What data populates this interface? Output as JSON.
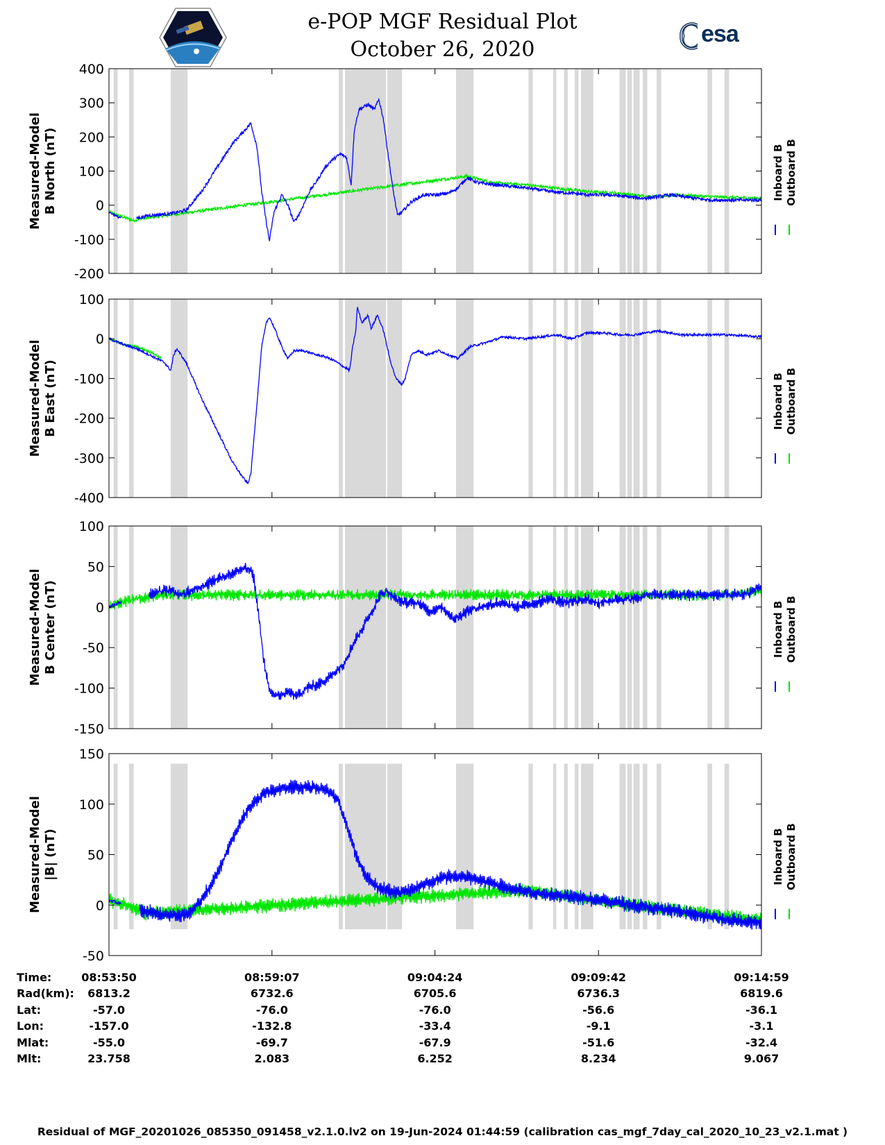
{
  "title": {
    "line1": "e-POP MGF Residual Plot",
    "line2": "October 26, 2020"
  },
  "logos": {
    "left": "cassiope-mission-logo",
    "right_text": "esa"
  },
  "colors": {
    "inboard": "#0000ff",
    "outboard": "#00e600",
    "gap": "#d9d9d9",
    "axis": "#000000"
  },
  "legend": {
    "inboard_label": "Inboard B",
    "outboard_label": "Outboard B"
  },
  "table": {
    "row_labels": [
      "Time:",
      "Rad(km):",
      "Lat:",
      "Lon:",
      "Mlat:",
      "Mlt:"
    ],
    "columns": [
      [
        "08:53:50",
        "6813.2",
        "-57.0",
        "-157.0",
        "-55.0",
        "23.758"
      ],
      [
        "08:59:07",
        "6732.6",
        "-76.0",
        "-132.8",
        "-69.7",
        "2.083"
      ],
      [
        "09:04:24",
        "6705.6",
        "-76.0",
        "-33.4",
        "-67.9",
        "6.252"
      ],
      [
        "09:09:42",
        "6736.3",
        "-56.6",
        "-9.1",
        "-51.6",
        "8.234"
      ],
      [
        "09:14:59",
        "6819.6",
        "-36.1",
        "-3.1",
        "-32.4",
        "9.067"
      ]
    ]
  },
  "footer": "Residual of MGF_20201026_085350_091458_v2.1.0.lv2 on 19-Jun-2024 01:44:59 (calibration cas_mgf_7day_cal_2020_10_23_v2.1.mat )",
  "chart_data": {
    "type": "line",
    "x_unit": "minutes since 08:53:50",
    "x_range": [
      0,
      21.15
    ],
    "x_ticks": [
      0,
      5.283,
      10.567,
      15.867,
      21.15
    ],
    "gaps": [
      [
        0.15,
        0.28
      ],
      [
        0.65,
        0.8
      ],
      [
        2.0,
        2.55
      ],
      [
        7.45,
        7.58
      ],
      [
        7.65,
        8.98
      ],
      [
        9.02,
        9.5
      ],
      [
        11.25,
        11.82
      ],
      [
        13.6,
        13.74
      ],
      [
        14.4,
        14.5
      ],
      [
        14.75,
        14.87
      ],
      [
        15.1,
        15.22
      ],
      [
        15.3,
        15.7
      ],
      [
        16.55,
        16.75
      ],
      [
        16.8,
        16.95
      ],
      [
        17.0,
        17.2
      ],
      [
        17.3,
        17.45
      ],
      [
        17.75,
        17.9
      ],
      [
        19.4,
        19.55
      ],
      [
        19.95,
        20.1
      ]
    ],
    "series": [
      {
        "name": "Measured-Model B North (nT)",
        "ylim": [
          -200,
          400
        ],
        "yticks": [
          -200,
          -100,
          0,
          100,
          200,
          300,
          400
        ],
        "inboard": [
          [
            0,
            -20
          ],
          [
            0.3,
            -35
          ],
          [
            0.8,
            -40
          ],
          [
            1.3,
            -30
          ],
          [
            2.0,
            -25
          ],
          [
            2.5,
            -15
          ],
          [
            3.0,
            40
          ],
          [
            3.5,
            110
          ],
          [
            4.0,
            180
          ],
          [
            4.4,
            220
          ],
          [
            4.6,
            240
          ],
          [
            4.8,
            170
          ],
          [
            4.95,
            40
          ],
          [
            5.1,
            -50
          ],
          [
            5.2,
            -105
          ],
          [
            5.35,
            -20
          ],
          [
            5.6,
            30
          ],
          [
            5.8,
            0
          ],
          [
            6.0,
            -50
          ],
          [
            6.2,
            -20
          ],
          [
            6.5,
            40
          ],
          [
            6.8,
            80
          ],
          [
            7.0,
            110
          ],
          [
            7.2,
            130
          ],
          [
            7.5,
            150
          ],
          [
            7.7,
            140
          ],
          [
            7.85,
            60
          ],
          [
            7.95,
            220
          ],
          [
            8.1,
            280
          ],
          [
            8.4,
            295
          ],
          [
            8.6,
            280
          ],
          [
            8.75,
            310
          ],
          [
            8.9,
            250
          ],
          [
            9.0,
            180
          ],
          [
            9.2,
            50
          ],
          [
            9.35,
            -30
          ],
          [
            9.5,
            -20
          ],
          [
            9.8,
            10
          ],
          [
            10.2,
            30
          ],
          [
            10.6,
            30
          ],
          [
            11.0,
            35
          ],
          [
            11.3,
            50
          ],
          [
            11.5,
            70
          ],
          [
            11.6,
            80
          ],
          [
            12.0,
            65
          ],
          [
            12.5,
            60
          ],
          [
            13.0,
            55
          ],
          [
            13.6,
            50
          ],
          [
            14.3,
            40
          ],
          [
            15.0,
            35
          ],
          [
            15.6,
            30
          ],
          [
            16.2,
            30
          ],
          [
            16.8,
            25
          ],
          [
            17.3,
            20
          ],
          [
            17.8,
            25
          ],
          [
            18.2,
            30
          ],
          [
            19.0,
            20
          ],
          [
            19.5,
            15
          ],
          [
            20.2,
            15
          ],
          [
            21.15,
            15
          ]
        ],
        "outboard": [
          [
            0,
            -20
          ],
          [
            0.3,
            -30
          ],
          [
            0.8,
            -45
          ],
          [
            1.0,
            -40
          ],
          [
            11.6,
            85
          ],
          [
            12.5,
            65
          ],
          [
            13.5,
            60
          ],
          [
            14.5,
            50
          ],
          [
            15.5,
            40
          ],
          [
            16.5,
            35
          ],
          [
            17.5,
            25
          ],
          [
            18.5,
            30
          ],
          [
            19.5,
            25
          ],
          [
            21.15,
            20
          ]
        ]
      },
      {
        "name": "Measured-Model B East (nT)",
        "ylim": [
          -400,
          100
        ],
        "yticks": [
          -400,
          -300,
          -200,
          -100,
          0,
          100
        ],
        "inboard": [
          [
            0,
            0
          ],
          [
            0.5,
            -15
          ],
          [
            0.9,
            -25
          ],
          [
            1.3,
            -40
          ],
          [
            1.8,
            -60
          ],
          [
            2.0,
            -80
          ],
          [
            2.1,
            -40
          ],
          [
            2.2,
            -25
          ],
          [
            2.5,
            -60
          ],
          [
            3.0,
            -150
          ],
          [
            3.5,
            -230
          ],
          [
            4.0,
            -310
          ],
          [
            4.3,
            -345
          ],
          [
            4.5,
            -365
          ],
          [
            4.6,
            -340
          ],
          [
            4.8,
            -160
          ],
          [
            4.95,
            -20
          ],
          [
            5.1,
            40
          ],
          [
            5.2,
            55
          ],
          [
            5.4,
            20
          ],
          [
            5.6,
            -20
          ],
          [
            5.8,
            -50
          ],
          [
            6.0,
            -30
          ],
          [
            6.3,
            -30
          ],
          [
            6.7,
            -40
          ],
          [
            7.0,
            -45
          ],
          [
            7.3,
            -55
          ],
          [
            7.6,
            -70
          ],
          [
            7.8,
            -80
          ],
          [
            7.9,
            -20
          ],
          [
            8.0,
            20
          ],
          [
            8.05,
            80
          ],
          [
            8.2,
            40
          ],
          [
            8.4,
            60
          ],
          [
            8.5,
            25
          ],
          [
            8.7,
            60
          ],
          [
            8.9,
            20
          ],
          [
            9.1,
            -50
          ],
          [
            9.3,
            -100
          ],
          [
            9.5,
            -115
          ],
          [
            9.6,
            -100
          ],
          [
            9.8,
            -40
          ],
          [
            10.0,
            -30
          ],
          [
            10.3,
            -40
          ],
          [
            10.7,
            -30
          ],
          [
            11.0,
            -40
          ],
          [
            11.3,
            -50
          ],
          [
            11.7,
            -20
          ],
          [
            12.2,
            -10
          ],
          [
            12.8,
            5
          ],
          [
            13.5,
            0
          ],
          [
            14.0,
            5
          ],
          [
            14.5,
            10
          ],
          [
            15.0,
            0
          ],
          [
            15.5,
            15
          ],
          [
            16.0,
            15
          ],
          [
            16.6,
            10
          ],
          [
            17.0,
            10
          ],
          [
            17.8,
            20
          ],
          [
            18.2,
            15
          ],
          [
            18.5,
            10
          ],
          [
            19.0,
            10
          ],
          [
            20.0,
            10
          ],
          [
            21.15,
            5
          ]
        ],
        "outboard": [
          [
            0,
            0
          ],
          [
            0.5,
            -15
          ],
          [
            0.9,
            -20
          ],
          [
            1.4,
            -35
          ],
          [
            1.7,
            -50
          ]
        ]
      },
      {
        "name": "Measured-Model B Center (nT)",
        "ylim": [
          -150,
          100
        ],
        "yticks": [
          -150,
          -100,
          -50,
          0,
          50,
          100
        ],
        "inboard": [
          [
            0,
            0
          ],
          [
            0.3,
            5
          ],
          [
            0.8,
            10
          ],
          [
            1.2,
            15
          ],
          [
            1.8,
            20
          ],
          [
            2.0,
            20
          ],
          [
            2.3,
            15
          ],
          [
            2.7,
            20
          ],
          [
            3.0,
            25
          ],
          [
            3.5,
            35
          ],
          [
            4.0,
            42
          ],
          [
            4.4,
            48
          ],
          [
            4.6,
            45
          ],
          [
            4.7,
            35
          ],
          [
            4.85,
            -10
          ],
          [
            5.0,
            -60
          ],
          [
            5.2,
            -105
          ],
          [
            5.5,
            -110
          ],
          [
            5.8,
            -105
          ],
          [
            6.1,
            -110
          ],
          [
            6.4,
            -100
          ],
          [
            6.8,
            -95
          ],
          [
            7.2,
            -85
          ],
          [
            7.6,
            -70
          ],
          [
            7.8,
            -55
          ],
          [
            8.0,
            -40
          ],
          [
            8.3,
            -20
          ],
          [
            8.6,
            0
          ],
          [
            8.8,
            15
          ],
          [
            9.0,
            20
          ],
          [
            9.3,
            10
          ],
          [
            9.6,
            5
          ],
          [
            10.0,
            5
          ],
          [
            10.4,
            -5
          ],
          [
            10.8,
            0
          ],
          [
            11.2,
            -15
          ],
          [
            11.6,
            -5
          ],
          [
            12.0,
            0
          ],
          [
            12.6,
            5
          ],
          [
            13.2,
            0
          ],
          [
            13.8,
            5
          ],
          [
            14.3,
            10
          ],
          [
            14.8,
            5
          ],
          [
            15.4,
            10
          ],
          [
            15.9,
            5
          ],
          [
            16.5,
            10
          ],
          [
            17.0,
            10
          ],
          [
            17.5,
            15
          ],
          [
            18.0,
            15
          ],
          [
            18.5,
            15
          ],
          [
            19.0,
            15
          ],
          [
            19.5,
            15
          ],
          [
            20.0,
            15
          ],
          [
            20.6,
            15
          ],
          [
            21.15,
            25
          ]
        ],
        "outboard": [
          [
            0,
            0
          ],
          [
            0.3,
            5
          ],
          [
            0.8,
            10
          ],
          [
            1.2,
            12
          ],
          [
            1.8,
            15
          ],
          [
            20.0,
            15
          ],
          [
            21.15,
            20
          ]
        ]
      },
      {
        "name": "Measured-Model |B| (nT)",
        "ylim": [
          -50,
          150
        ],
        "yticks": [
          -50,
          0,
          50,
          100,
          150
        ],
        "inboard": [
          [
            0,
            5
          ],
          [
            0.5,
            0
          ],
          [
            1.0,
            -5
          ],
          [
            1.5,
            -8
          ],
          [
            2.0,
            -10
          ],
          [
            2.5,
            -10
          ],
          [
            3.0,
            5
          ],
          [
            3.5,
            30
          ],
          [
            4.0,
            65
          ],
          [
            4.5,
            95
          ],
          [
            5.0,
            110
          ],
          [
            5.5,
            115
          ],
          [
            6.0,
            117
          ],
          [
            6.5,
            117
          ],
          [
            7.0,
            115
          ],
          [
            7.4,
            105
          ],
          [
            7.7,
            80
          ],
          [
            8.0,
            50
          ],
          [
            8.3,
            30
          ],
          [
            8.7,
            18
          ],
          [
            9.0,
            15
          ],
          [
            9.4,
            12
          ],
          [
            9.8,
            15
          ],
          [
            10.2,
            20
          ],
          [
            10.6,
            25
          ],
          [
            11.0,
            28
          ],
          [
            11.5,
            28
          ],
          [
            12.0,
            25
          ],
          [
            12.6,
            20
          ],
          [
            13.2,
            15
          ],
          [
            13.8,
            12
          ],
          [
            14.5,
            10
          ],
          [
            15.2,
            8
          ],
          [
            15.8,
            5
          ],
          [
            16.4,
            3
          ],
          [
            17.0,
            0
          ],
          [
            17.6,
            -3
          ],
          [
            18.2,
            -5
          ],
          [
            18.8,
            -8
          ],
          [
            19.5,
            -12
          ],
          [
            20.2,
            -15
          ],
          [
            21.15,
            -18
          ]
        ],
        "outboard": [
          [
            0,
            5
          ],
          [
            0.5,
            0
          ],
          [
            1.0,
            -5
          ],
          [
            1.2,
            -8
          ],
          [
            13.5,
            15
          ],
          [
            16.5,
            2
          ],
          [
            17.5,
            -2
          ],
          [
            21.15,
            -15
          ]
        ]
      }
    ]
  }
}
